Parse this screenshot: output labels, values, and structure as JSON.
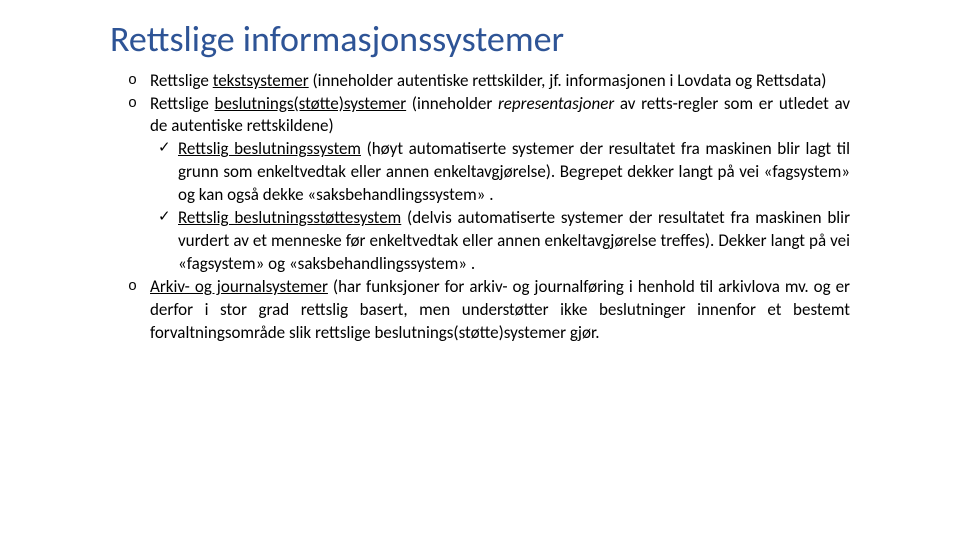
{
  "title": "Rettslige informasjonssystemer",
  "items": [
    {
      "html": "Rettslige <span class='u'>tekstsystemer</span> (inneholder autentiske rettskilder, jf. informasjonen i Lovdata og Rettsdata)"
    },
    {
      "html": "Rettslige <span class='u'>beslutnings(støtte)systemer</span> (inneholder <span class='i'>representasjoner</span> av retts-regler som er utledet av de autentiske rettskildene)",
      "sub": [
        {
          "html": "<span class='u'>Rettslig beslutningssystem</span> (høyt automatiserte systemer der resultatet fra maskinen blir lagt til grunn som enkeltvedtak eller annen enkeltavgjørelse). Begrepet dekker langt på vei «fagsystem» og kan også dekke «saksbehandlingssystem» ."
        },
        {
          "html": "<span class='u'>Rettslig beslutningsstøttesystem</span> (delvis automatiserte systemer der resultatet fra maskinen blir vurdert av et menneske før enkeltvedtak eller annen enkeltavgjørelse treffes). Dekker langt på vei «fagsystem» og «saksbehandlingssystem» ."
        }
      ]
    },
    {
      "html": "<span class='u'>Arkiv- og journalsystemer</span> (har funksjoner for arkiv- og journalføring i henhold til arkivlova mv. og er derfor i stor grad rettslig basert, men understøtter ikke beslutninger innenfor et bestemt forvaltningsområde slik rettslige beslutnings(støtte)systemer gjør."
    }
  ],
  "style": {
    "title_color": "#2e5496",
    "title_fontsize": 36,
    "body_fontsize": 17,
    "body_color": "#000000",
    "background": "#ffffff",
    "bullet1_glyph": "o",
    "bullet2_glyph": "✓"
  }
}
